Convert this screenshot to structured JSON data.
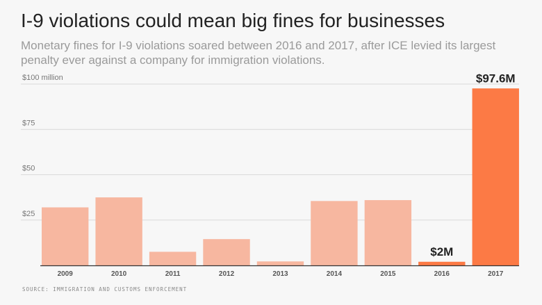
{
  "title": "I-9 violations could mean big fines for businesses",
  "subtitle": "Monetary fines for I-9 violations soared between 2016 and 2017, after ICE levied its largest penalty ever against a company for immigration violations.",
  "source": "SOURCE: IMMIGRATION AND CUSTOMS ENFORCEMENT",
  "colors": {
    "bar": "#f7b7a0",
    "highlight": "#fc7a45",
    "grid": "#d9d9d9",
    "axis": "#333333",
    "tick_text": "#777777"
  },
  "chart_data": {
    "type": "bar",
    "title": "I-9 violations could mean big fines for businesses",
    "xlabel": "",
    "ylabel": "",
    "categories": [
      "2009",
      "2010",
      "2011",
      "2012",
      "2013",
      "2014",
      "2015",
      "2016",
      "2017"
    ],
    "values": [
      32,
      37.5,
      7.5,
      14.5,
      2.2,
      35.5,
      36,
      2,
      97.6
    ],
    "highlight": [
      "2016",
      "2017"
    ],
    "data_labels": [
      {
        "category": "2016",
        "label": "$2M"
      },
      {
        "category": "2017",
        "label": "$97.6M"
      }
    ],
    "ylim": [
      0,
      100
    ],
    "yticks": [
      {
        "value": 25,
        "label": "$25"
      },
      {
        "value": 50,
        "label": "$50"
      },
      {
        "value": 75,
        "label": "$75"
      },
      {
        "value": 100,
        "label": "$100 million"
      }
    ],
    "grid": true,
    "legend": "none"
  }
}
